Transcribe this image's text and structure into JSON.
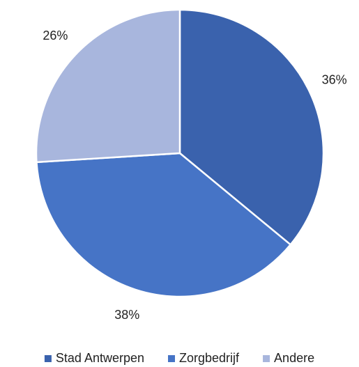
{
  "chart_data": {
    "type": "pie",
    "categories": [
      "Stad Antwerpen",
      "Zorgbedrijf",
      "Andere"
    ],
    "values": [
      36,
      38,
      26
    ],
    "value_labels": [
      "36%",
      "38%",
      "26%"
    ],
    "colors": [
      "#3a62ad",
      "#4674c6",
      "#a8b6dd"
    ],
    "legend": "bottom"
  }
}
